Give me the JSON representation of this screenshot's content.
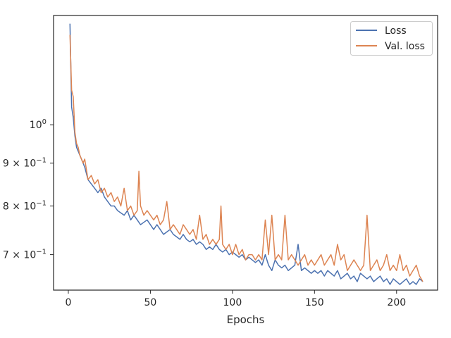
{
  "chart_data": {
    "type": "line",
    "title": "",
    "xlabel": "Epochs",
    "ylabel": "",
    "xlim": [
      -9,
      225
    ],
    "ylim": [
      0.635,
      1.35
    ],
    "yscale": "log",
    "grid": false,
    "legend_placement": "top-right",
    "xticks": [
      0,
      50,
      100,
      150,
      200
    ],
    "xtick_labels": [
      "0",
      "50",
      "100",
      "150",
      "200"
    ],
    "yticks": [
      {
        "value": 1.0,
        "base": "10",
        "exp": "0",
        "mult": ""
      },
      {
        "value": 0.9,
        "base": "10",
        "exp": "−1",
        "mult": "9 × "
      },
      {
        "value": 0.8,
        "base": "10",
        "exp": "−1",
        "mult": "8 × "
      },
      {
        "value": 0.7,
        "base": "10",
        "exp": "−1",
        "mult": "7 × "
      }
    ],
    "series": [
      {
        "name": "Loss",
        "color": "#4c72b0",
        "points": [
          [
            1,
            1.32
          ],
          [
            2,
            1.05
          ],
          [
            3,
            1.02
          ],
          [
            4,
            0.97
          ],
          [
            5,
            0.94
          ],
          [
            6,
            0.93
          ],
          [
            7,
            0.92
          ],
          [
            8,
            0.91
          ],
          [
            9,
            0.9
          ],
          [
            10,
            0.89
          ],
          [
            12,
            0.86
          ],
          [
            14,
            0.85
          ],
          [
            16,
            0.84
          ],
          [
            18,
            0.83
          ],
          [
            20,
            0.84
          ],
          [
            22,
            0.82
          ],
          [
            24,
            0.81
          ],
          [
            26,
            0.8
          ],
          [
            28,
            0.8
          ],
          [
            30,
            0.79
          ],
          [
            32,
            0.785
          ],
          [
            34,
            0.78
          ],
          [
            36,
            0.79
          ],
          [
            38,
            0.77
          ],
          [
            40,
            0.78
          ],
          [
            42,
            0.77
          ],
          [
            44,
            0.76
          ],
          [
            46,
            0.765
          ],
          [
            48,
            0.77
          ],
          [
            50,
            0.76
          ],
          [
            52,
            0.75
          ],
          [
            54,
            0.76
          ],
          [
            56,
            0.75
          ],
          [
            58,
            0.74
          ],
          [
            60,
            0.745
          ],
          [
            62,
            0.75
          ],
          [
            64,
            0.74
          ],
          [
            66,
            0.735
          ],
          [
            68,
            0.73
          ],
          [
            70,
            0.74
          ],
          [
            72,
            0.73
          ],
          [
            74,
            0.725
          ],
          [
            76,
            0.73
          ],
          [
            78,
            0.72
          ],
          [
            80,
            0.725
          ],
          [
            82,
            0.72
          ],
          [
            84,
            0.71
          ],
          [
            86,
            0.715
          ],
          [
            88,
            0.71
          ],
          [
            90,
            0.72
          ],
          [
            92,
            0.71
          ],
          [
            94,
            0.705
          ],
          [
            96,
            0.71
          ],
          [
            98,
            0.7
          ],
          [
            100,
            0.705
          ],
          [
            102,
            0.7
          ],
          [
            104,
            0.695
          ],
          [
            106,
            0.7
          ],
          [
            108,
            0.69
          ],
          [
            110,
            0.695
          ],
          [
            112,
            0.69
          ],
          [
            114,
            0.685
          ],
          [
            116,
            0.69
          ],
          [
            118,
            0.68
          ],
          [
            120,
            0.7
          ],
          [
            122,
            0.68
          ],
          [
            124,
            0.67
          ],
          [
            126,
            0.69
          ],
          [
            128,
            0.68
          ],
          [
            130,
            0.675
          ],
          [
            132,
            0.68
          ],
          [
            134,
            0.67
          ],
          [
            136,
            0.675
          ],
          [
            138,
            0.68
          ],
          [
            140,
            0.72
          ],
          [
            142,
            0.67
          ],
          [
            144,
            0.675
          ],
          [
            146,
            0.67
          ],
          [
            148,
            0.665
          ],
          [
            150,
            0.67
          ],
          [
            152,
            0.665
          ],
          [
            154,
            0.67
          ],
          [
            156,
            0.66
          ],
          [
            158,
            0.67
          ],
          [
            160,
            0.665
          ],
          [
            162,
            0.66
          ],
          [
            164,
            0.67
          ],
          [
            166,
            0.655
          ],
          [
            168,
            0.66
          ],
          [
            170,
            0.665
          ],
          [
            172,
            0.655
          ],
          [
            174,
            0.66
          ],
          [
            176,
            0.65
          ],
          [
            178,
            0.665
          ],
          [
            180,
            0.66
          ],
          [
            182,
            0.655
          ],
          [
            184,
            0.66
          ],
          [
            186,
            0.65
          ],
          [
            188,
            0.655
          ],
          [
            190,
            0.66
          ],
          [
            192,
            0.65
          ],
          [
            194,
            0.655
          ],
          [
            196,
            0.645
          ],
          [
            198,
            0.655
          ],
          [
            200,
            0.65
          ],
          [
            202,
            0.645
          ],
          [
            204,
            0.65
          ],
          [
            206,
            0.655
          ],
          [
            208,
            0.645
          ],
          [
            210,
            0.65
          ],
          [
            212,
            0.645
          ],
          [
            214,
            0.655
          ],
          [
            216,
            0.65
          ]
        ]
      },
      {
        "name": "Val. loss",
        "color": "#dd8452",
        "points": [
          [
            1,
            1.28
          ],
          [
            2,
            1.1
          ],
          [
            3,
            1.08
          ],
          [
            4,
            0.98
          ],
          [
            5,
            0.95
          ],
          [
            6,
            0.94
          ],
          [
            7,
            0.92
          ],
          [
            8,
            0.91
          ],
          [
            9,
            0.9
          ],
          [
            10,
            0.91
          ],
          [
            12,
            0.86
          ],
          [
            14,
            0.87
          ],
          [
            16,
            0.85
          ],
          [
            18,
            0.86
          ],
          [
            20,
            0.83
          ],
          [
            22,
            0.84
          ],
          [
            24,
            0.82
          ],
          [
            26,
            0.83
          ],
          [
            28,
            0.81
          ],
          [
            30,
            0.82
          ],
          [
            32,
            0.8
          ],
          [
            34,
            0.84
          ],
          [
            36,
            0.79
          ],
          [
            38,
            0.8
          ],
          [
            40,
            0.78
          ],
          [
            42,
            0.79
          ],
          [
            43,
            0.88
          ],
          [
            44,
            0.8
          ],
          [
            46,
            0.78
          ],
          [
            48,
            0.79
          ],
          [
            50,
            0.78
          ],
          [
            52,
            0.77
          ],
          [
            54,
            0.78
          ],
          [
            56,
            0.76
          ],
          [
            58,
            0.77
          ],
          [
            60,
            0.81
          ],
          [
            62,
            0.75
          ],
          [
            64,
            0.76
          ],
          [
            66,
            0.75
          ],
          [
            68,
            0.74
          ],
          [
            70,
            0.76
          ],
          [
            72,
            0.75
          ],
          [
            74,
            0.74
          ],
          [
            76,
            0.75
          ],
          [
            78,
            0.73
          ],
          [
            80,
            0.78
          ],
          [
            82,
            0.73
          ],
          [
            84,
            0.74
          ],
          [
            86,
            0.72
          ],
          [
            88,
            0.73
          ],
          [
            90,
            0.72
          ],
          [
            92,
            0.73
          ],
          [
            93,
            0.8
          ],
          [
            94,
            0.72
          ],
          [
            96,
            0.71
          ],
          [
            98,
            0.72
          ],
          [
            100,
            0.7
          ],
          [
            102,
            0.72
          ],
          [
            104,
            0.7
          ],
          [
            106,
            0.71
          ],
          [
            108,
            0.69
          ],
          [
            110,
            0.7
          ],
          [
            112,
            0.7
          ],
          [
            114,
            0.69
          ],
          [
            116,
            0.7
          ],
          [
            118,
            0.69
          ],
          [
            120,
            0.77
          ],
          [
            122,
            0.7
          ],
          [
            124,
            0.78
          ],
          [
            126,
            0.69
          ],
          [
            128,
            0.7
          ],
          [
            130,
            0.69
          ],
          [
            132,
            0.78
          ],
          [
            134,
            0.69
          ],
          [
            136,
            0.7
          ],
          [
            138,
            0.69
          ],
          [
            140,
            0.68
          ],
          [
            142,
            0.69
          ],
          [
            144,
            0.7
          ],
          [
            146,
            0.68
          ],
          [
            148,
            0.69
          ],
          [
            150,
            0.68
          ],
          [
            152,
            0.69
          ],
          [
            154,
            0.7
          ],
          [
            156,
            0.68
          ],
          [
            158,
            0.69
          ],
          [
            160,
            0.7
          ],
          [
            162,
            0.68
          ],
          [
            164,
            0.72
          ],
          [
            166,
            0.69
          ],
          [
            168,
            0.7
          ],
          [
            170,
            0.67
          ],
          [
            172,
            0.68
          ],
          [
            174,
            0.69
          ],
          [
            176,
            0.68
          ],
          [
            178,
            0.67
          ],
          [
            180,
            0.68
          ],
          [
            182,
            0.78
          ],
          [
            184,
            0.67
          ],
          [
            186,
            0.68
          ],
          [
            188,
            0.69
          ],
          [
            190,
            0.67
          ],
          [
            192,
            0.68
          ],
          [
            194,
            0.7
          ],
          [
            196,
            0.67
          ],
          [
            198,
            0.68
          ],
          [
            200,
            0.67
          ],
          [
            202,
            0.7
          ],
          [
            204,
            0.67
          ],
          [
            206,
            0.68
          ],
          [
            208,
            0.66
          ],
          [
            210,
            0.67
          ],
          [
            212,
            0.68
          ],
          [
            214,
            0.66
          ],
          [
            216,
            0.65
          ]
        ]
      }
    ]
  }
}
